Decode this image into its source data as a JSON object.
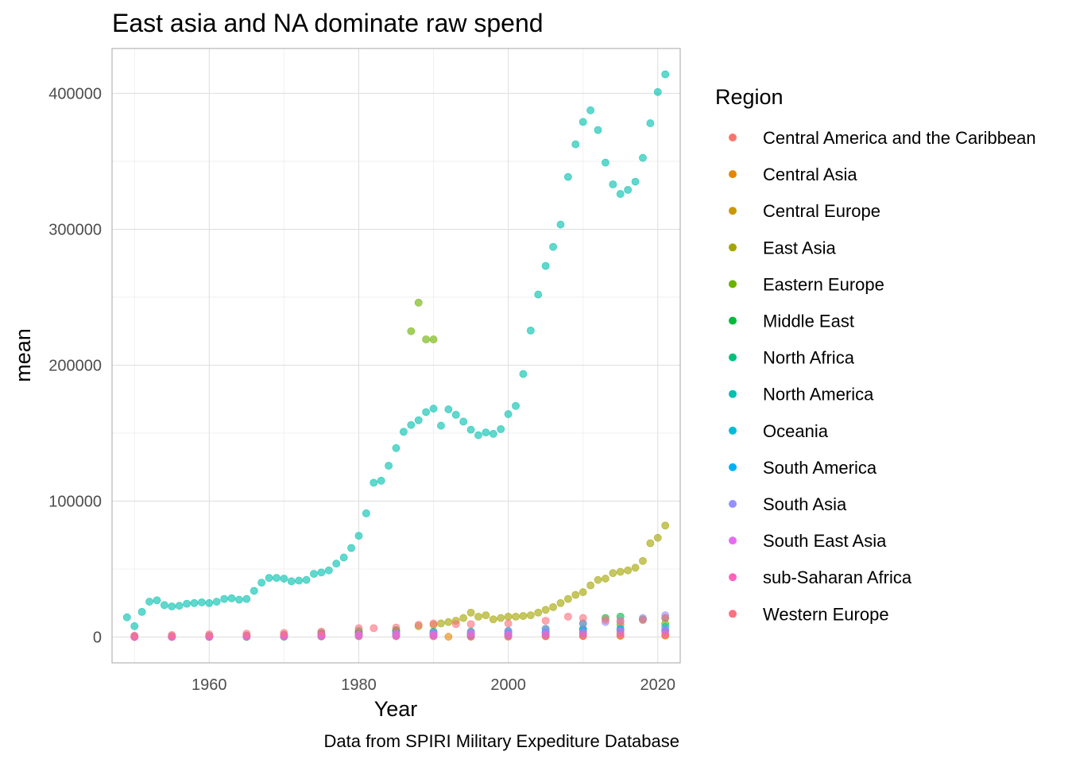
{
  "chart_data": {
    "type": "scatter",
    "title": "East asia and NA dominate raw spend",
    "caption": "Data from SPIRI Military Expediture Database",
    "xlabel": "Year",
    "ylabel": "mean",
    "xlim": [
      1947,
      2023
    ],
    "ylim": [
      -19000,
      433000
    ],
    "x_ticks": [
      1960,
      1980,
      2000,
      2020
    ],
    "x_tick_labels": [
      "1960",
      "1980",
      "2000",
      "2020"
    ],
    "y_ticks": [
      0,
      100000,
      200000,
      300000,
      400000
    ],
    "y_tick_labels": [
      "0",
      "100000",
      "200000",
      "300000",
      "400000"
    ],
    "grid": true,
    "legend": {
      "title": "Region",
      "position": "right"
    },
    "series": [
      {
        "name": "Central America and the Caribbean",
        "color": "#F8766D",
        "x": [
          1950,
          1955,
          1960,
          1965,
          1970,
          1975,
          1980,
          1985,
          1990,
          1995,
          2000,
          2005,
          2010,
          2015,
          2021
        ],
        "y": [
          100,
          150,
          200,
          250,
          300,
          400,
          500,
          500,
          500,
          500,
          600,
          700,
          900,
          1000,
          1100
        ]
      },
      {
        "name": "Central Asia",
        "color": "#E58700",
        "x": [
          1992,
          1995,
          2000,
          2005,
          2010,
          2015,
          2021
        ],
        "y": [
          200,
          200,
          300,
          500,
          700,
          900,
          1100
        ]
      },
      {
        "name": "Central Europe",
        "color": "#C99800",
        "x": [
          1950,
          1955,
          1960,
          1965,
          1970,
          1975,
          1980,
          1985,
          1990,
          1995,
          2000,
          2005,
          2010,
          2015,
          2021
        ],
        "y": [
          400,
          600,
          800,
          1100,
          1500,
          2000,
          2800,
          3500,
          3000,
          2000,
          2000,
          2500,
          3000,
          3000,
          4000
        ]
      },
      {
        "name": "East Asia",
        "color": "#A3A500",
        "x": [
          1950,
          1955,
          1960,
          1965,
          1970,
          1975,
          1980,
          1985,
          1988,
          1990,
          1991,
          1992,
          1993,
          1994,
          1995,
          1996,
          1997,
          1998,
          1999,
          2000,
          2001,
          2002,
          2003,
          2004,
          2005,
          2006,
          2007,
          2008,
          2009,
          2010,
          2011,
          2012,
          2013,
          2014,
          2015,
          2016,
          2017,
          2018,
          2019,
          2020,
          2021
        ],
        "y": [
          200,
          500,
          800,
          1000,
          1500,
          2000,
          3000,
          5000,
          8000,
          9000,
          10000,
          11000,
          12000,
          14000,
          18000,
          15000,
          16000,
          13000,
          14000,
          15000,
          15000,
          15500,
          16000,
          18000,
          20000,
          22000,
          25000,
          28000,
          31000,
          33000,
          38000,
          42000,
          43000,
          47000,
          48000,
          49000,
          51000,
          56000,
          69000,
          73000,
          82000
        ]
      },
      {
        "name": "Eastern Europe",
        "color": "#6BB100",
        "x": [
          1950,
          1955,
          1960,
          1965,
          1970,
          1975,
          1980,
          1985,
          1987,
          1988,
          1989,
          1990,
          1995,
          2000,
          2005,
          2010,
          2015,
          2021
        ],
        "y": [
          300,
          500,
          800,
          1000,
          1500,
          2000,
          3000,
          4000,
          225000,
          246000,
          219000,
          219000,
          2000,
          2500,
          3500,
          6000,
          9000,
          10000
        ]
      },
      {
        "name": "Middle East",
        "color": "#00BA38",
        "x": [
          1950,
          1955,
          1960,
          1965,
          1970,
          1975,
          1980,
          1985,
          1990,
          1995,
          2000,
          2005,
          2010,
          2013,
          2015,
          2018,
          2021
        ],
        "y": [
          100,
          200,
          300,
          500,
          1000,
          3000,
          4500,
          5000,
          4000,
          4000,
          4500,
          6000,
          10000,
          14000,
          15000,
          13000,
          14000
        ]
      },
      {
        "name": "North Africa",
        "color": "#00BF7D",
        "x": [
          1955,
          1960,
          1965,
          1970,
          1975,
          1980,
          1985,
          1990,
          1995,
          2000,
          2005,
          2010,
          2015,
          2021
        ],
        "y": [
          50,
          80,
          100,
          300,
          600,
          1000,
          1200,
          1200,
          1200,
          1500,
          2000,
          3000,
          4500,
          5000
        ]
      },
      {
        "name": "North America",
        "color": "#00C0AF",
        "x": [
          1949,
          1950,
          1951,
          1952,
          1953,
          1954,
          1955,
          1956,
          1957,
          1958,
          1959,
          1960,
          1961,
          1962,
          1963,
          1964,
          1965,
          1966,
          1967,
          1968,
          1969,
          1970,
          1971,
          1972,
          1973,
          1974,
          1975,
          1976,
          1977,
          1978,
          1979,
          1980,
          1981,
          1982,
          1983,
          1984,
          1985,
          1986,
          1987,
          1988,
          1989,
          1990,
          1991,
          1992,
          1993,
          1994,
          1995,
          1996,
          1997,
          1998,
          1999,
          2000,
          2001,
          2002,
          2003,
          2004,
          2005,
          2006,
          2007,
          2008,
          2009,
          2010,
          2011,
          2012,
          2013,
          2014,
          2015,
          2016,
          2017,
          2018,
          2019,
          2020,
          2021
        ],
        "y": [
          14500,
          8000,
          18500,
          26000,
          27000,
          23500,
          22500,
          23000,
          24500,
          25000,
          25500,
          25000,
          26000,
          28000,
          28500,
          27500,
          28000,
          34000,
          40000,
          43500,
          43500,
          43000,
          41000,
          41500,
          42000,
          46500,
          47500,
          49000,
          54000,
          58500,
          65500,
          74500,
          91000,
          113500,
          115000,
          126000,
          139000,
          151000,
          156000,
          159500,
          165500,
          168000,
          155500,
          167500,
          163500,
          158500,
          152500,
          148500,
          150500,
          149500,
          153000,
          164000,
          170000,
          193500,
          225500,
          252000,
          273000,
          287000,
          303500,
          338500,
          362500,
          379000,
          387500,
          373000,
          349000,
          333000,
          326000,
          329000,
          335000,
          352500,
          378000,
          401000,
          414000
        ]
      },
      {
        "name": "Oceania",
        "color": "#00BCD8",
        "x": [
          1950,
          1955,
          1960,
          1965,
          1970,
          1975,
          1980,
          1985,
          1990,
          1995,
          2000,
          2005,
          2010,
          2015,
          2021
        ],
        "y": [
          300,
          400,
          500,
          700,
          900,
          1000,
          1500,
          2000,
          2500,
          2500,
          2700,
          3500,
          5500,
          6000,
          7500
        ]
      },
      {
        "name": "South America",
        "color": "#00B0F6",
        "x": [
          1950,
          1955,
          1960,
          1965,
          1970,
          1975,
          1980,
          1985,
          1990,
          1995,
          2000,
          2005,
          2010,
          2015,
          2021
        ],
        "y": [
          500,
          600,
          700,
          800,
          1000,
          1500,
          2000,
          2500,
          2500,
          3000,
          3000,
          3500,
          5000,
          5500,
          5000
        ]
      },
      {
        "name": "South Asia",
        "color": "#9590FF",
        "x": [
          1950,
          1955,
          1960,
          1965,
          1970,
          1975,
          1980,
          1985,
          1990,
          1995,
          2000,
          2005,
          2010,
          2013,
          2015,
          2018,
          2021
        ],
        "y": [
          200,
          300,
          400,
          800,
          1000,
          1200,
          1800,
          3000,
          3500,
          3500,
          4500,
          6000,
          10000,
          11000,
          12000,
          14000,
          16000
        ]
      },
      {
        "name": "South East Asia",
        "color": "#E76BF3",
        "x": [
          1950,
          1955,
          1960,
          1965,
          1970,
          1975,
          1980,
          1985,
          1990,
          1995,
          2000,
          2005,
          2010,
          2015,
          2021
        ],
        "y": [
          100,
          200,
          300,
          600,
          1000,
          1200,
          1500,
          1700,
          1800,
          2500,
          2000,
          2500,
          3500,
          4500,
          5000
        ]
      },
      {
        "name": "sub-Saharan Africa",
        "color": "#FF62BC",
        "x": [
          1950,
          1955,
          1960,
          1965,
          1970,
          1975,
          1980,
          1985,
          1990,
          1995,
          2000,
          2005,
          2010,
          2015,
          2021
        ],
        "y": [
          50,
          100,
          200,
          400,
          600,
          800,
          1000,
          800,
          800,
          600,
          800,
          1000,
          1500,
          1800,
          2000
        ]
      },
      {
        "name": "Western Europe",
        "color": "#FC717F",
        "x": [
          1950,
          1955,
          1960,
          1965,
          1970,
          1975,
          1980,
          1982,
          1985,
          1988,
          1990,
          1993,
          1995,
          2000,
          2005,
          2008,
          2010,
          2013,
          2015,
          2018,
          2021
        ],
        "y": [
          1000,
          1500,
          2000,
          2500,
          3000,
          4000,
          6500,
          6500,
          7000,
          9000,
          10000,
          9500,
          9500,
          10000,
          12000,
          15000,
          14000,
          12500,
          11500,
          12500,
          14000
        ]
      }
    ]
  }
}
